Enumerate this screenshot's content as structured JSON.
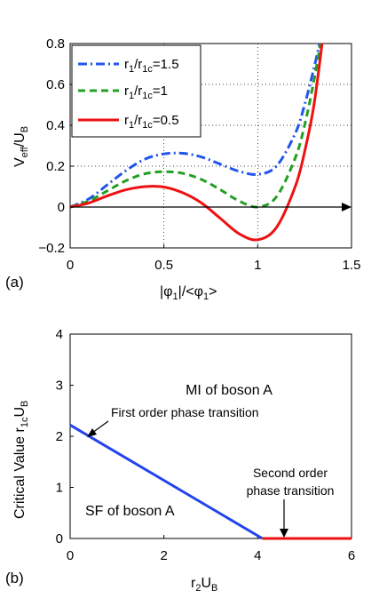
{
  "chart_data": [
    {
      "panel": "(a)",
      "type": "line",
      "xlim": [
        0,
        1.5
      ],
      "ylim": [
        -0.2,
        0.8
      ],
      "xticks": [
        "0",
        "0.5",
        "1",
        "1.5"
      ],
      "yticks": [
        "−0.2",
        "0",
        "0.2",
        "0.4",
        "0.6",
        "0.8"
      ],
      "xlabel": {
        "pre": "|φ",
        "sub1": "1",
        "mid": "|/<φ",
        "sub2": "1",
        "post": ">"
      },
      "ylabel": {
        "pre": "V",
        "sub": "eff",
        "post": "/U",
        "sub2": "B"
      },
      "grid": "dotted",
      "legend_position": "top-left",
      "x": [
        0,
        0.1,
        0.2,
        0.3,
        0.4,
        0.5,
        0.6,
        0.7,
        0.8,
        0.9,
        1.0,
        1.1,
        1.2,
        1.25,
        1.3,
        1.35
      ],
      "series": [
        {
          "name": {
            "pre": "r",
            "s1": "1",
            "mid": "/r",
            "s2": "1c",
            "post": "=1.5"
          },
          "color": "#2255ee",
          "style": "dashdot",
          "values": [
            0,
            0.04,
            0.11,
            0.18,
            0.235,
            0.26,
            0.263,
            0.245,
            0.21,
            0.175,
            0.16,
            0.2,
            0.36,
            0.5,
            0.68,
            0.88
          ]
        },
        {
          "name": {
            "pre": "r",
            "s1": "1",
            "mid": "/r",
            "s2": "1c",
            "post": "=1"
          },
          "color": "#22a022",
          "style": "dashed",
          "values": [
            0,
            0.03,
            0.08,
            0.13,
            0.163,
            0.173,
            0.165,
            0.135,
            0.085,
            0.03,
            0.0,
            0.05,
            0.24,
            0.4,
            0.62,
            0.88
          ]
        },
        {
          "name": {
            "pre": "r",
            "s1": "1",
            "mid": "/r",
            "s2": "1c",
            "post": "=0.5"
          },
          "color": "#ee1111",
          "style": "solid",
          "values": [
            0,
            0.02,
            0.055,
            0.085,
            0.1,
            0.098,
            0.07,
            0.02,
            -0.055,
            -0.13,
            -0.16,
            -0.1,
            0.1,
            0.27,
            0.5,
            0.85
          ]
        }
      ],
      "arrow_axis": {
        "y": 0,
        "from_x": 0,
        "to_x": 1.5
      }
    },
    {
      "panel": "(b)",
      "type": "line",
      "xlim": [
        0,
        6
      ],
      "ylim": [
        0,
        4
      ],
      "xticks": [
        "0",
        "2",
        "4",
        "6"
      ],
      "yticks": [
        "0",
        "1",
        "2",
        "3",
        "4"
      ],
      "xlabel": {
        "pre": "r",
        "sub": "2",
        "mid": "U",
        "sub2": "B"
      },
      "ylabel": {
        "pre": "Critical Value r",
        "sub": "1c",
        "mid": "U",
        "sub2": "B"
      },
      "series": [
        {
          "color": "#2244ee",
          "x": [
            0,
            4.1
          ],
          "values": [
            2.22,
            0
          ]
        },
        {
          "color": "#ee1111",
          "x": [
            4.1,
            6
          ],
          "values": [
            0,
            0
          ]
        }
      ],
      "annotations": {
        "first_order": "First order phase transition",
        "second_order_l1": "Second order",
        "second_order_l2": "phase transition",
        "mi_region": "MI of boson A",
        "sf_region": "SF of boson A"
      }
    }
  ]
}
